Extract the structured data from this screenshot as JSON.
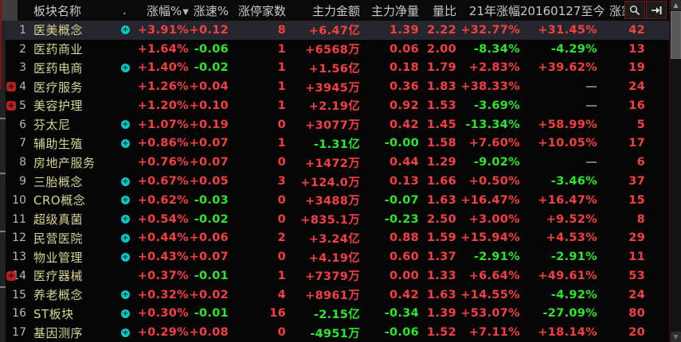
{
  "colors": {
    "up": "#f34141",
    "down": "#2ee62e",
    "sector_name": "#d6d690",
    "neutral_dash": "#e9e9e9",
    "accent_border": "#7c1414",
    "flag_cyan": "#00c9c9",
    "badge_red": "#b42222"
  },
  "header": {
    "cols": [
      "板块名称",
      ".",
      "涨幅%",
      "涨速%",
      "涨停家数",
      "主力金额",
      "主力净量",
      "量比",
      "21年涨幅",
      "20160127至今",
      "涨家数"
    ],
    "sort_arrow": "▼"
  },
  "toolbar": {
    "search_icon": "magnifier",
    "skip_icon": "arrow-to-bar"
  },
  "scrollbar": {
    "up_arrow": "▲",
    "down_arrow": "▼"
  },
  "rows": [
    {
      "num": "1",
      "name": "医美概念",
      "badge": false,
      "flag": true,
      "selected": true,
      "chg": "+3.91%",
      "spd": "+0.12",
      "limit": "8",
      "amt": "+6.47亿",
      "net": "1.39",
      "ratio": "2.22",
      "yr21": "+32.77%",
      "since": "+31.45%",
      "cnt": "42"
    },
    {
      "num": "2",
      "name": "医药商业",
      "badge": false,
      "flag": false,
      "selected": false,
      "chg": "+1.64%",
      "spd": "-0.06",
      "limit": "1",
      "amt": "+6568万",
      "net": "0.06",
      "ratio": "2.00",
      "yr21": "-8.34%",
      "since": "-4.29%",
      "cnt": "13"
    },
    {
      "num": "3",
      "name": "医药电商",
      "badge": false,
      "flag": true,
      "selected": false,
      "chg": "+1.40%",
      "spd": "-0.02",
      "limit": "1",
      "amt": "+1.56亿",
      "net": "0.18",
      "ratio": "1.79",
      "yr21": "+2.83%",
      "since": "+39.62%",
      "cnt": "19"
    },
    {
      "num": "4",
      "name": "医疗服务",
      "badge": true,
      "flag": false,
      "selected": false,
      "chg": "+1.26%",
      "spd": "+0.04",
      "limit": "1",
      "amt": "+3945万",
      "net": "0.36",
      "ratio": "1.83",
      "yr21": "+38.33%",
      "since": "—",
      "cnt": "24"
    },
    {
      "num": "5",
      "name": "美容护理",
      "badge": true,
      "flag": false,
      "selected": false,
      "chg": "+1.20%",
      "spd": "+0.10",
      "limit": "1",
      "amt": "+2.19亿",
      "net": "0.92",
      "ratio": "1.53",
      "yr21": "-3.69%",
      "since": "—",
      "cnt": "16"
    },
    {
      "num": "6",
      "name": "芬太尼",
      "badge": false,
      "flag": true,
      "selected": false,
      "chg": "+1.07%",
      "spd": "+0.19",
      "limit": "0",
      "amt": "+3077万",
      "net": "0.42",
      "ratio": "1.45",
      "yr21": "-13.34%",
      "since": "+58.99%",
      "cnt": "5"
    },
    {
      "num": "7",
      "name": "辅助生殖",
      "badge": false,
      "flag": true,
      "selected": false,
      "chg": "+0.86%",
      "spd": "+0.07",
      "limit": "1",
      "amt": "-1.31亿",
      "net": "-0.00",
      "ratio": "1.58",
      "yr21": "+7.60%",
      "since": "+10.05%",
      "cnt": "17"
    },
    {
      "num": "8",
      "name": "房地产服务",
      "badge": false,
      "flag": false,
      "selected": false,
      "chg": "+0.76%",
      "spd": "+0.07",
      "limit": "0",
      "amt": "+1472万",
      "net": "0.44",
      "ratio": "1.29",
      "yr21": "-9.02%",
      "since": "—",
      "cnt": "6"
    },
    {
      "num": "9",
      "name": "三胎概念",
      "badge": false,
      "flag": true,
      "selected": false,
      "chg": "+0.67%",
      "spd": "+0.05",
      "limit": "3",
      "amt": "+124.0万",
      "net": "0.13",
      "ratio": "1.66",
      "yr21": "+0.50%",
      "since": "-3.46%",
      "cnt": "37"
    },
    {
      "num": "10",
      "name": "CRO概念",
      "badge": false,
      "flag": true,
      "selected": false,
      "chg": "+0.62%",
      "spd": "-0.03",
      "limit": "0",
      "amt": "+3488万",
      "net": "-0.07",
      "ratio": "1.63",
      "yr21": "+16.47%",
      "since": "+16.47%",
      "cnt": "15"
    },
    {
      "num": "11",
      "name": "超级真菌",
      "badge": false,
      "flag": true,
      "selected": false,
      "chg": "+0.54%",
      "spd": "-0.02",
      "limit": "0",
      "amt": "+835.1万",
      "net": "-0.23",
      "ratio": "2.50",
      "yr21": "+3.00%",
      "since": "+9.52%",
      "cnt": "8"
    },
    {
      "num": "12",
      "name": "民营医院",
      "badge": false,
      "flag": true,
      "selected": false,
      "chg": "+0.44%",
      "spd": "+0.06",
      "limit": "2",
      "amt": "+3.24亿",
      "net": "0.88",
      "ratio": "1.59",
      "yr21": "+15.94%",
      "since": "+4.53%",
      "cnt": "29"
    },
    {
      "num": "13",
      "name": "物业管理",
      "badge": false,
      "flag": true,
      "selected": false,
      "chg": "+0.43%",
      "spd": "+0.07",
      "limit": "0",
      "amt": "+4.19亿",
      "net": "0.60",
      "ratio": "1.37",
      "yr21": "-2.91%",
      "since": "-2.91%",
      "cnt": "11"
    },
    {
      "num": "14",
      "name": "医疗器械",
      "badge": true,
      "flag": false,
      "selected": false,
      "chg": "+0.37%",
      "spd": "-0.01",
      "limit": "1",
      "amt": "+7379万",
      "net": "0.00",
      "ratio": "1.33",
      "yr21": "+6.64%",
      "since": "+49.61%",
      "cnt": "53"
    },
    {
      "num": "15",
      "name": "养老概念",
      "badge": false,
      "flag": true,
      "selected": false,
      "chg": "+0.32%",
      "spd": "+0.02",
      "limit": "4",
      "amt": "+8961万",
      "net": "0.42",
      "ratio": "1.63",
      "yr21": "+14.55%",
      "since": "-4.92%",
      "cnt": "24"
    },
    {
      "num": "16",
      "name": "ST板块",
      "badge": false,
      "flag": true,
      "selected": false,
      "chg": "+0.30%",
      "spd": "-0.01",
      "limit": "16",
      "amt": "-2.15亿",
      "net": "-0.34",
      "ratio": "1.39",
      "yr21": "+53.07%",
      "since": "-27.09%",
      "cnt": "80"
    },
    {
      "num": "17",
      "name": "基因测序",
      "badge": false,
      "flag": true,
      "selected": false,
      "chg": "+0.29%",
      "spd": "+0.08",
      "limit": "0",
      "amt": "-4951万",
      "net": "-0.06",
      "ratio": "1.52",
      "yr21": "+7.11%",
      "since": "+18.14%",
      "cnt": "20"
    }
  ]
}
